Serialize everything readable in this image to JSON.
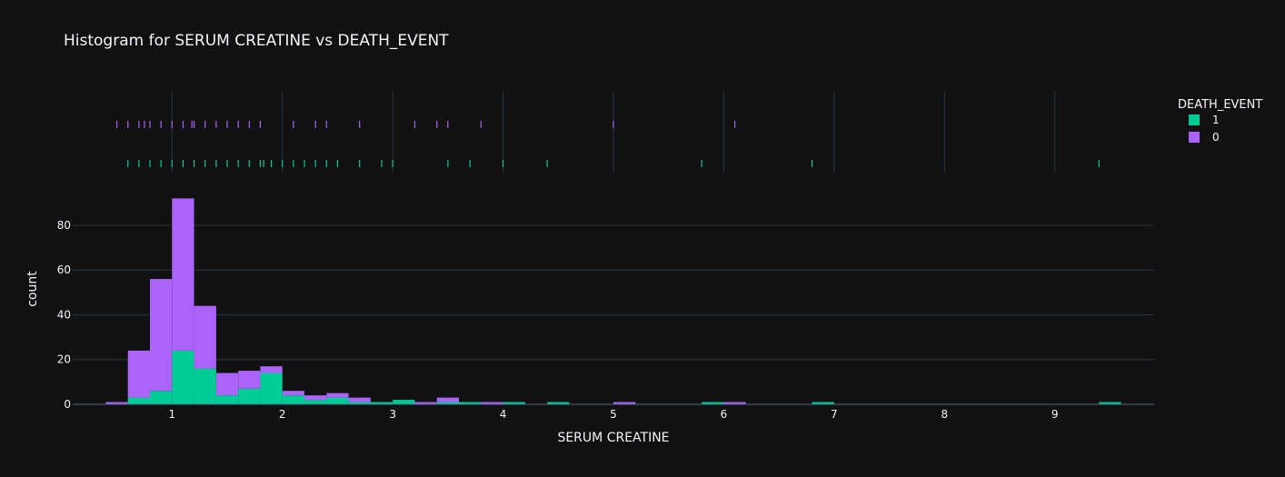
{
  "chart_data": {
    "type": "histogram",
    "title": "Histogram for SERUM CREATINE vs DEATH_EVENT",
    "xlabel": "SERUM CREATINE",
    "ylabel": "count",
    "xlim": [
      0.1,
      9.9
    ],
    "ylim": [
      0,
      95
    ],
    "x_ticks": [
      1,
      2,
      3,
      4,
      5,
      6,
      7,
      8,
      9
    ],
    "y_ticks": [
      0,
      20,
      40,
      60,
      80
    ],
    "barmode": "stack",
    "bin_width": 0.2,
    "bin_starts": [
      0.4,
      0.6,
      0.8,
      1.0,
      1.2,
      1.4,
      1.6,
      1.8,
      2.0,
      2.2,
      2.4,
      2.6,
      2.8,
      3.0,
      3.2,
      3.4,
      3.6,
      3.8,
      4.0,
      4.4,
      5.0,
      5.8,
      6.0,
      6.8,
      9.4
    ],
    "series": [
      {
        "name": "1",
        "color": "#00cc96",
        "values": [
          0,
          3,
          6,
          24,
          16,
          4,
          7,
          14,
          4,
          2,
          3,
          1,
          1,
          2,
          0,
          1,
          1,
          0,
          1,
          1,
          0,
          1,
          0,
          1,
          1
        ]
      },
      {
        "name": "0",
        "color": "#ab63fa",
        "values": [
          1,
          21,
          50,
          68,
          28,
          10,
          8,
          3,
          2,
          2,
          2,
          2,
          0,
          0,
          1,
          2,
          0,
          1,
          0,
          0,
          1,
          0,
          1,
          0,
          0
        ]
      }
    ],
    "rug": [
      {
        "name": "1",
        "color": "#00cc96",
        "x": [
          0.6,
          0.7,
          0.8,
          0.9,
          1.0,
          1.1,
          1.2,
          1.3,
          1.4,
          1.5,
          1.6,
          1.7,
          1.8,
          1.83,
          1.9,
          2.0,
          2.1,
          2.2,
          2.3,
          2.4,
          2.5,
          2.7,
          2.9,
          3.0,
          3.5,
          3.7,
          4.0,
          4.4,
          5.8,
          6.8,
          9.4
        ]
      },
      {
        "name": "0",
        "color": "#ab63fa",
        "x": [
          0.5,
          0.6,
          0.7,
          0.75,
          0.8,
          0.9,
          1.0,
          1.1,
          1.18,
          1.2,
          1.3,
          1.4,
          1.5,
          1.6,
          1.7,
          1.8,
          2.1,
          2.3,
          2.4,
          2.7,
          3.2,
          3.4,
          3.5,
          3.8,
          5.0,
          6.1
        ]
      }
    ],
    "legend": {
      "title": "DEATH_EVENT",
      "position": "top-right"
    },
    "grid": true
  }
}
